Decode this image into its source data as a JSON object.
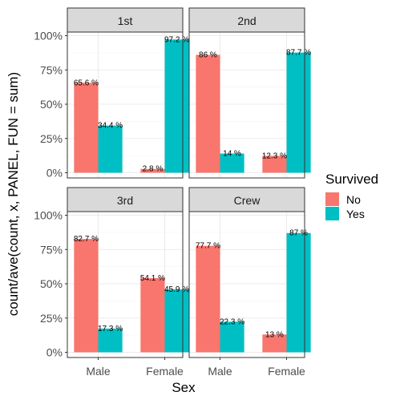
{
  "chart_data": {
    "type": "bar",
    "facet_by": "Class",
    "panels": [
      {
        "label": "1st",
        "values": {
          "No": [
            65.6,
            2.8
          ],
          "Yes": [
            34.4,
            97.2
          ]
        },
        "labels": {
          "No": [
            "65.6 %",
            "2.8 %"
          ],
          "Yes": [
            "34.4 %",
            "97.2 %"
          ]
        }
      },
      {
        "label": "2nd",
        "values": {
          "No": [
            86,
            12.3
          ],
          "Yes": [
            14,
            87.7
          ]
        },
        "labels": {
          "No": [
            "86 %",
            "12.3 %"
          ],
          "Yes": [
            "14 %",
            "87.7 %"
          ]
        }
      },
      {
        "label": "3rd",
        "values": {
          "No": [
            82.7,
            54.1
          ],
          "Yes": [
            17.3,
            45.9
          ]
        },
        "labels": {
          "No": [
            "82.7 %",
            "54.1 %"
          ],
          "Yes": [
            "17.3 %",
            "45.9 %"
          ]
        }
      },
      {
        "label": "Crew",
        "values": {
          "No": [
            77.7,
            13
          ],
          "Yes": [
            22.3,
            87
          ]
        },
        "labels": {
          "No": [
            "77.7 %",
            "13 %"
          ],
          "Yes": [
            "22.3 %",
            "87 %"
          ]
        }
      }
    ],
    "categories": [
      "Male",
      "Female"
    ],
    "series": [
      {
        "name": "No",
        "color": "#F8766D"
      },
      {
        "name": "Yes",
        "color": "#00BFC4"
      }
    ],
    "y_ticks": [
      "0%",
      "25%",
      "50%",
      "75%",
      "100%"
    ],
    "ylim": [
      0,
      100
    ],
    "xlabel": "Sex",
    "ylabel": "count/ave(count, x, PANEL, FUN = sum)",
    "legend_title": "Survived",
    "legend_position": "right",
    "grid": true
  }
}
